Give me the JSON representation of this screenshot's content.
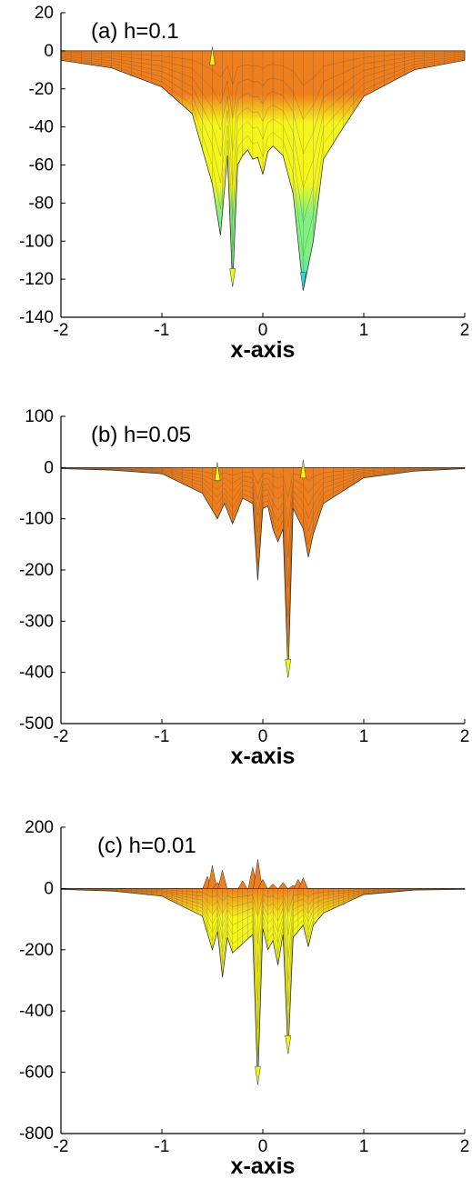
{
  "chart_data": [
    {
      "type": "area",
      "title": "(a) h=0.1",
      "xlabel": "x-axis",
      "ylabel": "",
      "xlim": [
        -2,
        2
      ],
      "ylim": [
        -140,
        20
      ],
      "xticks": [
        -2,
        -1,
        0,
        1,
        2
      ],
      "yticks": [
        20,
        0,
        -20,
        -40,
        -60,
        -80,
        -100,
        -120,
        -140
      ],
      "colors": [
        "#ee7f1f",
        "#f5f51e",
        "#80f080",
        "#33d3e0"
      ],
      "envelope": {
        "x": [
          -2,
          -1.5,
          -1,
          -0.7,
          -0.5,
          -0.42,
          -0.35,
          -0.3,
          -0.25,
          -0.2,
          -0.15,
          -0.1,
          -0.05,
          0,
          0.05,
          0.1,
          0.2,
          0.3,
          0.4,
          0.5,
          0.6,
          0.8,
          1,
          1.5,
          2
        ],
        "y": [
          -5,
          -9,
          -19,
          -33,
          -70,
          -97,
          -55,
          -124,
          -60,
          -55,
          -52,
          -57,
          -56,
          -65,
          -53,
          -50,
          -55,
          -75,
          -126,
          -100,
          -57,
          -40,
          -24,
          -10,
          -5
        ]
      },
      "peaks": [
        {
          "x": -0.5,
          "y": 2
        },
        {
          "x": -0.3,
          "y": -124
        },
        {
          "x": 0.4,
          "y": -126
        }
      ]
    },
    {
      "type": "area",
      "title": "(b) h=0.05",
      "xlabel": "x-axis",
      "ylabel": "",
      "xlim": [
        -2,
        2
      ],
      "ylim": [
        -500,
        100
      ],
      "xticks": [
        -2,
        -1,
        0,
        1,
        2
      ],
      "yticks": [
        100,
        0,
        -100,
        -200,
        -300,
        -400,
        -500
      ],
      "colors": [
        "#ee7f1f",
        "#f5f51e"
      ],
      "envelope": {
        "x": [
          -2,
          -1.5,
          -1,
          -0.6,
          -0.45,
          -0.38,
          -0.3,
          -0.2,
          -0.1,
          -0.05,
          0,
          0.05,
          0.1,
          0.15,
          0.2,
          0.25,
          0.3,
          0.4,
          0.45,
          0.5,
          0.6,
          1,
          1.5,
          2
        ],
        "y": [
          -2,
          -5,
          -12,
          -50,
          -100,
          -70,
          -110,
          -60,
          -70,
          -220,
          -80,
          -75,
          -120,
          -145,
          -120,
          -410,
          -80,
          -120,
          -175,
          -130,
          -70,
          -20,
          -7,
          -2
        ]
      },
      "peaks": [
        {
          "x": -0.45,
          "y": 10
        },
        {
          "x": 0.4,
          "y": 15
        },
        {
          "x": 0.25,
          "y": -410
        }
      ]
    },
    {
      "type": "area",
      "title": "(c) h=0.01",
      "xlabel": "x-axis",
      "ylabel": "",
      "xlim": [
        -2,
        2
      ],
      "ylim": [
        -800,
        200
      ],
      "xticks": [
        -2,
        -1,
        0,
        1,
        2
      ],
      "yticks": [
        200,
        0,
        -200,
        -400,
        -600,
        -800
      ],
      "colors": [
        "#ee7f1f",
        "#f5f51e",
        "#33d3e0"
      ],
      "envelope": {
        "x": [
          -2,
          -1.5,
          -1,
          -0.6,
          -0.5,
          -0.45,
          -0.4,
          -0.35,
          -0.3,
          -0.2,
          -0.1,
          -0.05,
          0,
          0.05,
          0.1,
          0.15,
          0.2,
          0.25,
          0.3,
          0.4,
          0.45,
          0.5,
          0.6,
          1,
          1.5,
          2
        ],
        "y": [
          -3,
          -8,
          -25,
          -90,
          -200,
          -140,
          -290,
          -160,
          -210,
          -180,
          -150,
          -640,
          -130,
          -200,
          -170,
          -250,
          -150,
          -540,
          -160,
          -120,
          -190,
          -120,
          -80,
          -20,
          -5,
          -3
        ]
      },
      "spikes_up": {
        "x": [
          -0.55,
          -0.5,
          -0.45,
          -0.4,
          -0.2,
          -0.1,
          -0.05,
          0,
          0.1,
          0.2,
          0.3,
          0.35,
          0.4
        ],
        "y": [
          40,
          75,
          20,
          60,
          25,
          70,
          95,
          30,
          15,
          20,
          10,
          30,
          35
        ]
      },
      "peaks": [
        {
          "x": -0.05,
          "y": -640
        },
        {
          "x": 0.25,
          "y": -540
        }
      ]
    }
  ]
}
